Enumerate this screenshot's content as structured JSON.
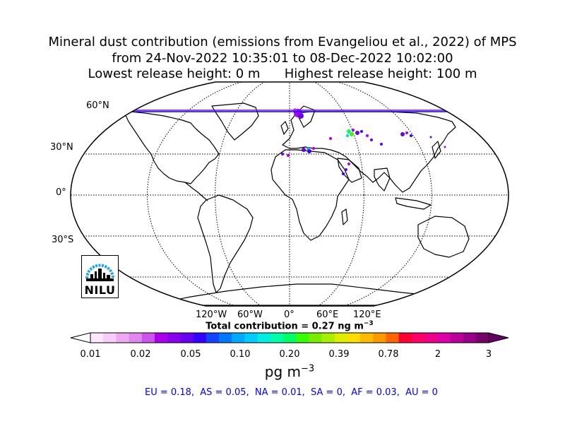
{
  "title": {
    "line1": "Mineral dust contribution (emissions from Evangeliou et al., 2022) of MPS",
    "line2": "from 24-Nov-2022 10:35:01 to 08-Dec-2022 10:02:00",
    "line3_left": "Lowest release height: 0 m",
    "line3_right": "Highest release height: 100 m"
  },
  "map": {
    "projection": "Robinson",
    "lat_labels": [
      "60°N",
      "30°N",
      "0°",
      "30°S"
    ],
    "lon_labels": [
      "120°W",
      "60°W",
      "0°",
      "60°E",
      "120°E"
    ],
    "colors": {
      "coast": "#000000",
      "grid": "#000000",
      "transect_line": "#0000ff",
      "transect_line2": "#8000ff"
    }
  },
  "total_contribution": "Total contribution = 0.27 ng m",
  "total_contribution_exp": "−3",
  "colorbar": {
    "ticks": [
      "0.01",
      "0.02",
      "0.05",
      "0.10",
      "0.20",
      "0.39",
      "0.78",
      "2",
      "3"
    ],
    "colors": [
      "#ffe8ff",
      "#f8ccf8",
      "#eeaaf0",
      "#e088ee",
      "#cc55ee",
      "#aa00ee",
      "#8800ee",
      "#6600ee",
      "#3300ff",
      "#1144ff",
      "#0077ff",
      "#00aaff",
      "#00ccff",
      "#00eedd",
      "#00ffaa",
      "#00ff66",
      "#33ff00",
      "#77ee00",
      "#aaee00",
      "#ddee00",
      "#ffdd00",
      "#ffbb00",
      "#ff9900",
      "#ff6600",
      "#ff0033",
      "#ff0066",
      "#ee0088",
      "#dd00aa",
      "#bb0099",
      "#990088",
      "#770066"
    ],
    "under_color": "#ffffff",
    "over_color": "#660066"
  },
  "unit": {
    "base": "pg m",
    "exp": "−3"
  },
  "region_summary": "EU = 0.18,  AS = 0.05,  NA = 0.01,  SA = 0,  AF = 0.03,  AU = 0",
  "logo": {
    "text": "NILU",
    "arc_color": "#1aa3e8"
  }
}
